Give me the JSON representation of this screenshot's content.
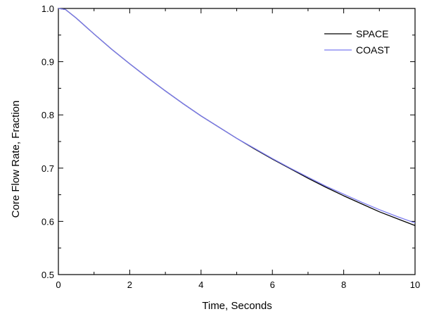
{
  "chart_data": {
    "type": "line",
    "title": "",
    "xlabel": "Time, Seconds",
    "ylabel": "Core Flow Rate, Fraction",
    "xlim": [
      0,
      10
    ],
    "ylim": [
      0.5,
      1.0
    ],
    "x_ticks": [
      0,
      2,
      4,
      6,
      8,
      10
    ],
    "y_ticks": [
      0.5,
      0.6,
      0.7,
      0.8,
      0.9,
      1.0
    ],
    "x_tick_labels": [
      "0",
      "2",
      "4",
      "6",
      "8",
      "10"
    ],
    "y_tick_labels": [
      "0.5",
      "0.6",
      "0.7",
      "0.8",
      "0.9",
      "1.0"
    ],
    "grid": false,
    "legend_position": "top-right",
    "series": [
      {
        "name": "SPACE",
        "color": "#000000",
        "x": [
          0,
          0.2,
          0.5,
          1,
          1.5,
          2,
          2.5,
          3,
          3.5,
          4,
          4.5,
          5,
          5.5,
          6,
          6.5,
          7,
          7.5,
          8,
          8.5,
          9,
          9.5,
          10
        ],
        "y": [
          1.0,
          0.998,
          0.982,
          0.952,
          0.923,
          0.896,
          0.87,
          0.845,
          0.821,
          0.798,
          0.777,
          0.756,
          0.736,
          0.717,
          0.699,
          0.681,
          0.664,
          0.648,
          0.633,
          0.618,
          0.605,
          0.592
        ]
      },
      {
        "name": "COAST",
        "color": "#7b7bf0",
        "x": [
          0,
          0.2,
          0.5,
          1,
          1.5,
          2,
          2.5,
          3,
          3.5,
          4,
          4.5,
          5,
          5.5,
          6,
          6.5,
          7,
          7.5,
          8,
          8.5,
          9,
          9.5,
          10
        ],
        "y": [
          1.0,
          0.998,
          0.982,
          0.952,
          0.923,
          0.896,
          0.87,
          0.845,
          0.821,
          0.798,
          0.777,
          0.756,
          0.737,
          0.718,
          0.7,
          0.683,
          0.666,
          0.651,
          0.636,
          0.622,
          0.609,
          0.597
        ]
      }
    ]
  }
}
